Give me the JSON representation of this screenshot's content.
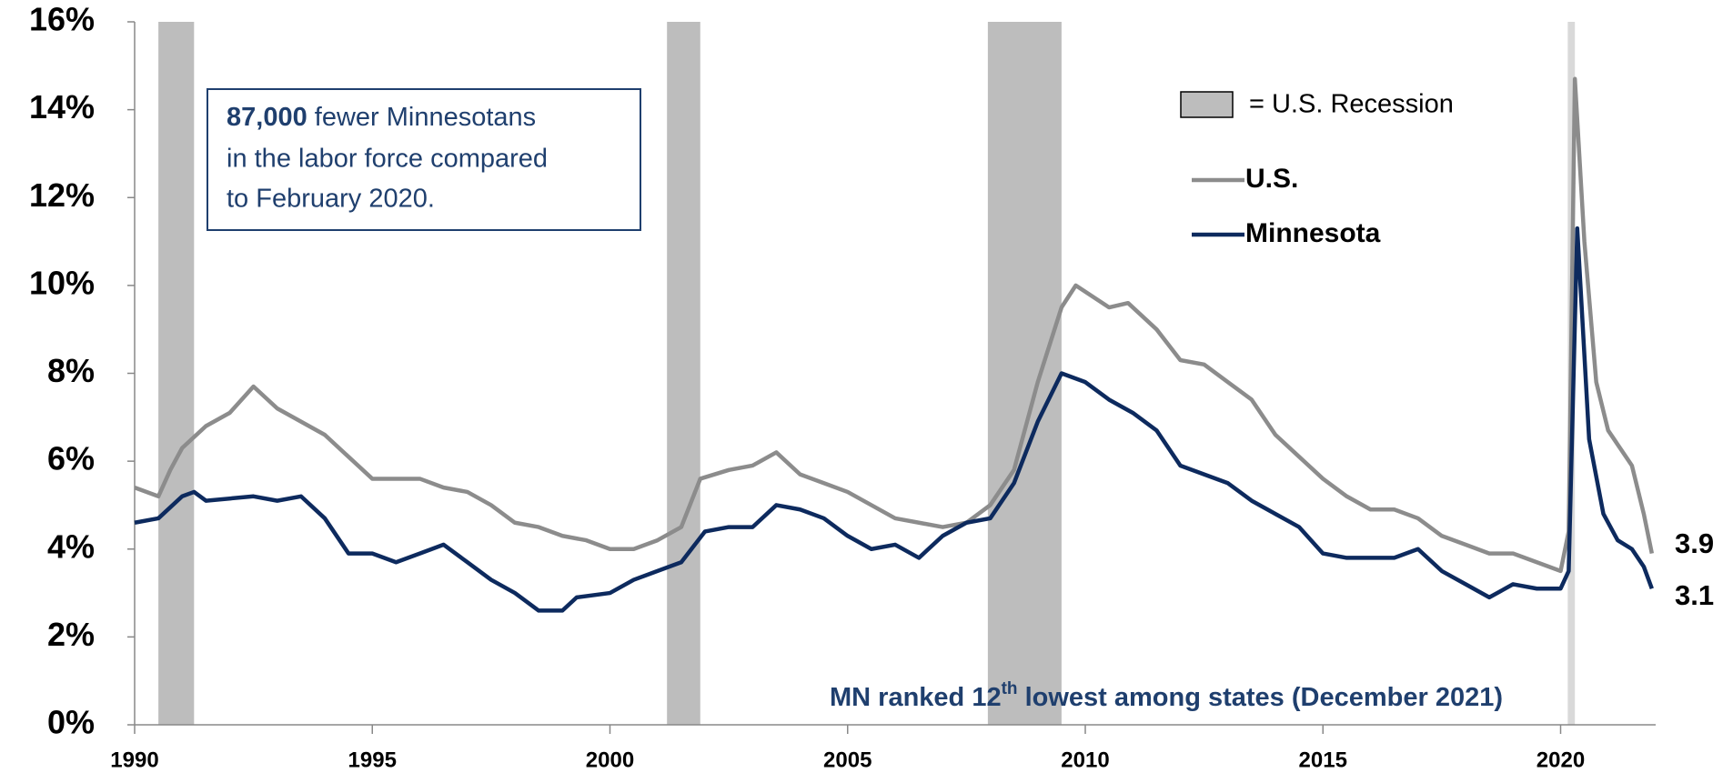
{
  "chart_data": {
    "type": "line",
    "xlim": [
      1990,
      2022
    ],
    "xticks": [
      1990,
      1995,
      2000,
      2005,
      2010,
      2015,
      2020
    ],
    "ylim": [
      0,
      16
    ],
    "yticks": [
      {
        "value": 0,
        "label": "0%"
      },
      {
        "value": 2,
        "label": "2%"
      },
      {
        "value": 4,
        "label": "4%"
      },
      {
        "value": 6,
        "label": "6%"
      },
      {
        "value": 8,
        "label": "8%"
      },
      {
        "value": 10,
        "label": "10%"
      },
      {
        "value": 12,
        "label": "12%"
      },
      {
        "value": 14,
        "label": "14%"
      },
      {
        "value": 16,
        "label": "16%"
      }
    ],
    "recession_label": "= U.S. Recession",
    "recessions": [
      {
        "start": 1990.5,
        "end": 1991.25,
        "color": "#bdbdbd"
      },
      {
        "start": 2001.2,
        "end": 2001.9,
        "color": "#bdbdbd"
      },
      {
        "start": 2007.95,
        "end": 2009.5,
        "color": "#bdbdbd"
      },
      {
        "start": 2020.15,
        "end": 2020.3,
        "color": "#d9d9d9"
      }
    ],
    "box_text": [
      "87,000",
      " fewer Minnesotans",
      "in the labor force compared",
      "to  February 2020."
    ],
    "note": [
      "MN ranked 12",
      "th",
      " lowest among states (December 2021)"
    ],
    "series": [
      {
        "name": "U.S.",
        "color": "#8c8c8c",
        "x": [
          1990.0,
          1990.5,
          1990.75,
          1991.0,
          1991.5,
          1992.0,
          1992.5,
          1993.0,
          1993.5,
          1994.0,
          1994.5,
          1995.0,
          1995.5,
          1996.0,
          1996.5,
          1997.0,
          1997.5,
          1998.0,
          1998.5,
          1999.0,
          1999.5,
          2000.0,
          2000.5,
          2001.0,
          2001.5,
          2001.9,
          2002.5,
          2003.0,
          2003.5,
          2004.0,
          2004.5,
          2005.0,
          2005.5,
          2006.0,
          2006.5,
          2007.0,
          2007.5,
          2008.0,
          2008.5,
          2009.0,
          2009.5,
          2009.8,
          2010.5,
          2010.9,
          2011.5,
          2012.0,
          2012.5,
          2013.0,
          2013.5,
          2014.0,
          2014.5,
          2015.0,
          2015.5,
          2016.0,
          2016.5,
          2017.0,
          2017.5,
          2018.0,
          2018.5,
          2019.0,
          2019.5,
          2020.0,
          2020.17,
          2020.3,
          2020.5,
          2020.75,
          2021.0,
          2021.5,
          2021.75,
          2021.92
        ],
        "values": [
          5.4,
          5.2,
          5.8,
          6.3,
          6.8,
          7.1,
          7.7,
          7.2,
          6.9,
          6.6,
          6.1,
          5.6,
          5.6,
          5.6,
          5.4,
          5.3,
          5.0,
          4.6,
          4.5,
          4.3,
          4.2,
          4.0,
          4.0,
          4.2,
          4.5,
          5.6,
          5.8,
          5.9,
          6.2,
          5.7,
          5.5,
          5.3,
          5.0,
          4.7,
          4.6,
          4.5,
          4.6,
          5.0,
          5.8,
          7.8,
          9.5,
          10.0,
          9.5,
          9.6,
          9.0,
          8.3,
          8.2,
          7.8,
          7.4,
          6.6,
          6.1,
          5.6,
          5.2,
          4.9,
          4.9,
          4.7,
          4.3,
          4.1,
          3.9,
          3.9,
          3.7,
          3.5,
          4.4,
          14.7,
          11.0,
          7.8,
          6.7,
          5.9,
          4.8,
          3.9
        ]
      },
      {
        "name": "Minnesota",
        "color": "#0d2a5e",
        "x": [
          1990.0,
          1990.5,
          1991.0,
          1991.25,
          1991.5,
          1992.5,
          1993.0,
          1993.5,
          1994.0,
          1994.5,
          1995.0,
          1995.5,
          1996.0,
          1996.5,
          1997.0,
          1997.5,
          1998.0,
          1998.5,
          1999.0,
          1999.3,
          2000.0,
          2000.5,
          2001.0,
          2001.5,
          2002.0,
          2002.5,
          2003.0,
          2003.5,
          2004.0,
          2004.5,
          2005.0,
          2005.5,
          2006.0,
          2006.5,
          2007.0,
          2007.5,
          2008.0,
          2008.5,
          2009.0,
          2009.5,
          2010.0,
          2010.5,
          2011.0,
          2011.5,
          2012.0,
          2012.5,
          2013.0,
          2013.5,
          2014.0,
          2014.5,
          2015.0,
          2015.5,
          2016.0,
          2016.5,
          2017.0,
          2017.5,
          2018.0,
          2018.5,
          2019.0,
          2019.5,
          2020.0,
          2020.17,
          2020.35,
          2020.6,
          2020.9,
          2021.2,
          2021.5,
          2021.75,
          2021.92
        ],
        "values": [
          4.6,
          4.7,
          5.2,
          5.3,
          5.1,
          5.2,
          5.1,
          5.2,
          4.7,
          3.9,
          3.9,
          3.7,
          3.9,
          4.1,
          3.7,
          3.3,
          3.0,
          2.6,
          2.6,
          2.9,
          3.0,
          3.3,
          3.5,
          3.7,
          4.4,
          4.5,
          4.5,
          5.0,
          4.9,
          4.7,
          4.3,
          4.0,
          4.1,
          3.8,
          4.3,
          4.6,
          4.7,
          5.5,
          6.9,
          8.0,
          7.8,
          7.4,
          7.1,
          6.7,
          5.9,
          5.7,
          5.5,
          5.1,
          4.8,
          4.5,
          3.9,
          3.8,
          3.8,
          3.8,
          4.0,
          3.5,
          3.2,
          2.9,
          3.2,
          3.1,
          3.1,
          3.5,
          11.3,
          6.5,
          4.8,
          4.2,
          4.0,
          3.6,
          3.1
        ]
      }
    ]
  }
}
